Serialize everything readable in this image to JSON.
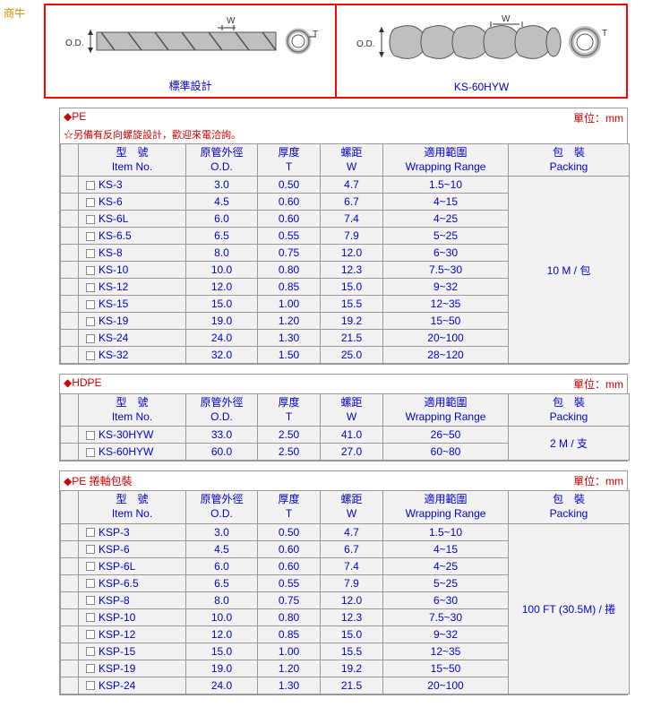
{
  "topLabel": "商牛",
  "diagrams": {
    "left_label": "標準設計",
    "right_label": "KS-60HYW",
    "od_label": "O.D.",
    "w_label": "W",
    "t_label": "T"
  },
  "headers": {
    "itemNo": {
      "zh": "型　號",
      "en": "Item No."
    },
    "od": {
      "zh": "原管外徑",
      "en": "O.D."
    },
    "t": {
      "zh": "厚度",
      "en": "T"
    },
    "w": {
      "zh": "螺距",
      "en": "W"
    },
    "range": {
      "zh": "適用範圍",
      "en": "Wrapping Range"
    },
    "pack": {
      "zh": "包　裝",
      "en": "Packing"
    }
  },
  "table1": {
    "title": "◆PE",
    "note": "☆另備有反向螺旋設計，歡迎來電洽詢。",
    "unit": "單位：mm",
    "packing": "10 M / 包",
    "rows": [
      {
        "item": "KS-3",
        "od": "3.0",
        "t": "0.50",
        "w": "4.7",
        "range": "1.5~10"
      },
      {
        "item": "KS-6",
        "od": "4.5",
        "t": "0.60",
        "w": "6.7",
        "range": "4~15"
      },
      {
        "item": "KS-6L",
        "od": "6.0",
        "t": "0.60",
        "w": "7.4",
        "range": "4~25"
      },
      {
        "item": "KS-6.5",
        "od": "6.5",
        "t": "0.55",
        "w": "7.9",
        "range": "5~25"
      },
      {
        "item": "KS-8",
        "od": "8.0",
        "t": "0.75",
        "w": "12.0",
        "range": "6~30"
      },
      {
        "item": "KS-10",
        "od": "10.0",
        "t": "0.80",
        "w": "12.3",
        "range": "7.5~30"
      },
      {
        "item": "KS-12",
        "od": "12.0",
        "t": "0.85",
        "w": "15.0",
        "range": "9~32"
      },
      {
        "item": "KS-15",
        "od": "15.0",
        "t": "1.00",
        "w": "15.5",
        "range": "12~35"
      },
      {
        "item": "KS-19",
        "od": "19.0",
        "t": "1.20",
        "w": "19.2",
        "range": "15~50"
      },
      {
        "item": "KS-24",
        "od": "24.0",
        "t": "1.30",
        "w": "21.5",
        "range": "20~100"
      },
      {
        "item": "KS-32",
        "od": "32.0",
        "t": "1.50",
        "w": "25.0",
        "range": "28~120"
      }
    ]
  },
  "table2": {
    "title": "◆HDPE",
    "unit": "單位：mm",
    "packing": "2 M / 支",
    "rows": [
      {
        "item": "KS-30HYW",
        "od": "33.0",
        "t": "2.50",
        "w": "41.0",
        "range": "26~50"
      },
      {
        "item": "KS-60HYW",
        "od": "60.0",
        "t": "2.50",
        "w": "27.0",
        "range": "60~80"
      }
    ]
  },
  "table3": {
    "title": "◆PE 捲軸包裝",
    "unit": "單位：mm",
    "packing": "100 FT (30.5M) / 捲",
    "rows": [
      {
        "item": "KSP-3",
        "od": "3.0",
        "t": "0.50",
        "w": "4.7",
        "range": "1.5~10"
      },
      {
        "item": "KSP-6",
        "od": "4.5",
        "t": "0.60",
        "w": "6.7",
        "range": "4~15"
      },
      {
        "item": "KSP-6L",
        "od": "6.0",
        "t": "0.60",
        "w": "7.4",
        "range": "4~25"
      },
      {
        "item": "KSP-6.5",
        "od": "6.5",
        "t": "0.55",
        "w": "7.9",
        "range": "5~25"
      },
      {
        "item": "KSP-8",
        "od": "8.0",
        "t": "0.75",
        "w": "12.0",
        "range": "6~30"
      },
      {
        "item": "KSP-10",
        "od": "10.0",
        "t": "0.80",
        "w": "12.3",
        "range": "7.5~30"
      },
      {
        "item": "KSP-12",
        "od": "12.0",
        "t": "0.85",
        "w": "15.0",
        "range": "9~32"
      },
      {
        "item": "KSP-15",
        "od": "15.0",
        "t": "1.00",
        "w": "15.5",
        "range": "12~35"
      },
      {
        "item": "KSP-19",
        "od": "19.0",
        "t": "1.20",
        "w": "19.2",
        "range": "15~50"
      },
      {
        "item": "KSP-24",
        "od": "24.0",
        "t": "1.30",
        "w": "21.5",
        "range": "20~100"
      }
    ]
  }
}
